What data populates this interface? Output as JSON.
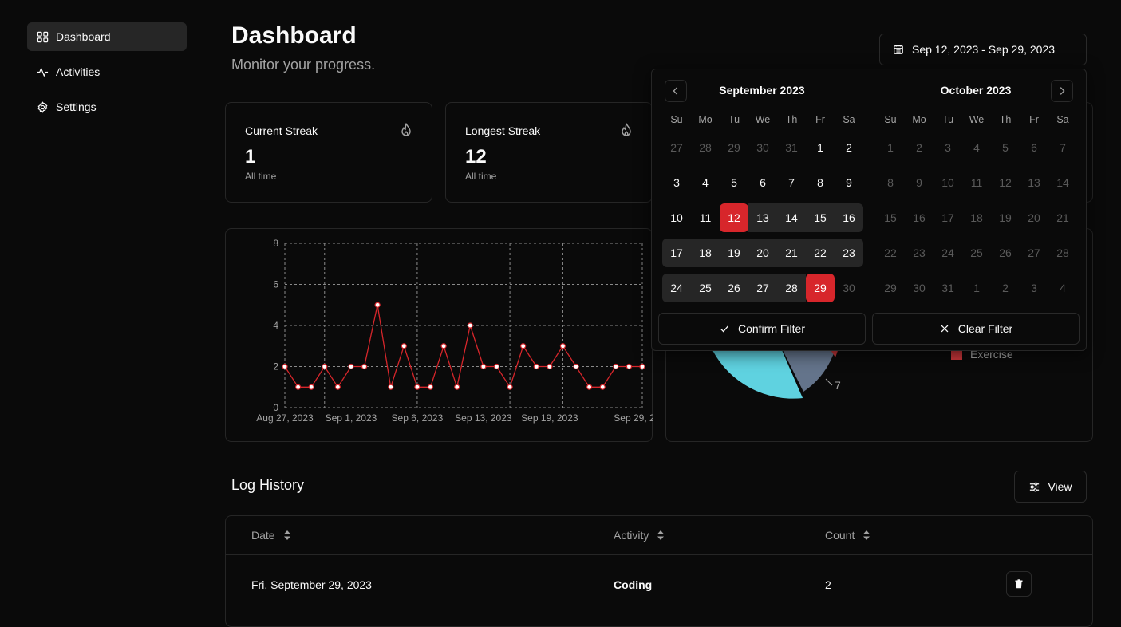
{
  "sidebar": {
    "items": [
      {
        "label": "Dashboard",
        "icon": "grid-icon",
        "active": true
      },
      {
        "label": "Activities",
        "icon": "activity-icon",
        "active": false
      },
      {
        "label": "Settings",
        "icon": "gear-icon",
        "active": false
      }
    ]
  },
  "header": {
    "title": "Dashboard",
    "subtitle": "Monitor your progress.",
    "date_range": "Sep 12, 2023 - Sep 29, 2023"
  },
  "stats": [
    {
      "title": "Current Streak",
      "value": "1",
      "footnote": "All time",
      "icon": "flame-icon"
    },
    {
      "title": "Longest Streak",
      "value": "12",
      "footnote": "All time",
      "icon": "flame-icon"
    }
  ],
  "chart_data": {
    "type": "line",
    "title": "",
    "xlabel": "",
    "ylabel": "",
    "ylim": [
      0,
      8
    ],
    "y_ticks": [
      "0",
      "2",
      "4",
      "6",
      "8"
    ],
    "x_ticks": [
      "Aug 27, 2023",
      "Sep 1, 2023",
      "Sep 6, 2023",
      "Sep 13, 2023",
      "Sep 19, 2023",
      "Sep 29, 2023"
    ],
    "grid": true,
    "series": [
      {
        "color": "#d7262b",
        "values": [
          2,
          1,
          1,
          2,
          1,
          2,
          2,
          5,
          1,
          3,
          1,
          1,
          3,
          1,
          4,
          2,
          2,
          1,
          3,
          2,
          2,
          3,
          2,
          1,
          1,
          2,
          2,
          2
        ]
      }
    ]
  },
  "pie": {
    "visible_label": "7",
    "legend": [
      {
        "label": "Exercise",
        "color": "#c8363a"
      }
    ],
    "colors": {
      "cyan": "#5fd2e0",
      "slate": "#64748b",
      "red": "#c8363a"
    }
  },
  "calendar": {
    "left": {
      "title": "September 2023",
      "weekdays": [
        "Su",
        "Mo",
        "Tu",
        "We",
        "Th",
        "Fr",
        "Sa"
      ],
      "weeks": [
        [
          [
            "27",
            "out"
          ],
          [
            "28",
            "out"
          ],
          [
            "29",
            "out"
          ],
          [
            "30",
            "out"
          ],
          [
            "31",
            "out"
          ],
          [
            "1",
            ""
          ],
          [
            "2",
            ""
          ]
        ],
        [
          [
            "3",
            ""
          ],
          [
            "4",
            ""
          ],
          [
            "5",
            ""
          ],
          [
            "6",
            ""
          ],
          [
            "7",
            ""
          ],
          [
            "8",
            ""
          ],
          [
            "9",
            ""
          ]
        ],
        [
          [
            "10",
            ""
          ],
          [
            "11",
            ""
          ],
          [
            "12",
            "sel"
          ],
          [
            "13",
            "range"
          ],
          [
            "14",
            "range"
          ],
          [
            "15",
            "range"
          ],
          [
            "16",
            "range"
          ]
        ],
        [
          [
            "17",
            "range"
          ],
          [
            "18",
            "range"
          ],
          [
            "19",
            "range"
          ],
          [
            "20",
            "range"
          ],
          [
            "21",
            "range"
          ],
          [
            "22",
            "range"
          ],
          [
            "23",
            "range"
          ]
        ],
        [
          [
            "24",
            "range"
          ],
          [
            "25",
            "range"
          ],
          [
            "26",
            "range"
          ],
          [
            "27",
            "range"
          ],
          [
            "28",
            "range"
          ],
          [
            "29",
            "sel"
          ],
          [
            "30",
            "out"
          ]
        ]
      ]
    },
    "right": {
      "title": "October 2023",
      "weekdays": [
        "Su",
        "Mo",
        "Tu",
        "We",
        "Th",
        "Fr",
        "Sa"
      ],
      "weeks": [
        [
          [
            "1",
            "out"
          ],
          [
            "2",
            "out"
          ],
          [
            "3",
            "out"
          ],
          [
            "4",
            "out"
          ],
          [
            "5",
            "out"
          ],
          [
            "6",
            "out"
          ],
          [
            "7",
            "out"
          ]
        ],
        [
          [
            "8",
            "out"
          ],
          [
            "9",
            "out"
          ],
          [
            "10",
            "out"
          ],
          [
            "11",
            "out"
          ],
          [
            "12",
            "out"
          ],
          [
            "13",
            "out"
          ],
          [
            "14",
            "out"
          ]
        ],
        [
          [
            "15",
            "out"
          ],
          [
            "16",
            "out"
          ],
          [
            "17",
            "out"
          ],
          [
            "18",
            "out"
          ],
          [
            "19",
            "out"
          ],
          [
            "20",
            "out"
          ],
          [
            "21",
            "out"
          ]
        ],
        [
          [
            "22",
            "out"
          ],
          [
            "23",
            "out"
          ],
          [
            "24",
            "out"
          ],
          [
            "25",
            "out"
          ],
          [
            "26",
            "out"
          ],
          [
            "27",
            "out"
          ],
          [
            "28",
            "out"
          ]
        ],
        [
          [
            "29",
            "out"
          ],
          [
            "30",
            "out"
          ],
          [
            "31",
            "out"
          ],
          [
            "1",
            "out"
          ],
          [
            "2",
            "out"
          ],
          [
            "3",
            "out"
          ],
          [
            "4",
            "out"
          ]
        ]
      ]
    },
    "confirm_label": "Confirm Filter",
    "clear_label": "Clear Filter"
  },
  "log": {
    "title": "Log History",
    "view_label": "View",
    "columns": [
      "Date",
      "Activity",
      "Count"
    ],
    "rows": [
      {
        "date": "Fri, September 29, 2023",
        "activity": "Coding",
        "count": "2"
      }
    ]
  },
  "colors": {
    "accent": "#d7262b",
    "background": "#0a0a0a",
    "border": "#262626"
  }
}
